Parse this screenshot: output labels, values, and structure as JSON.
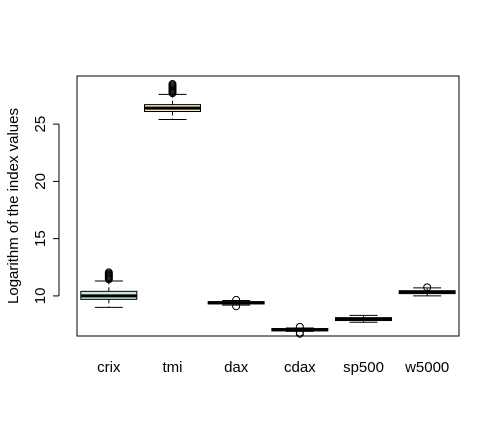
{
  "chart_data": {
    "type": "boxplot",
    "title": "",
    "xlabel": "",
    "ylabel": "Logarithm of the index values",
    "ylim": [
      6.5,
      29.2
    ],
    "y_ticks": [
      10,
      15,
      20,
      25
    ],
    "grid": false,
    "categories": [
      "crix",
      "tmi",
      "dax",
      "cdax",
      "sp500",
      "w5000"
    ],
    "boxes": [
      {
        "name": "crix",
        "fill": "#c7e9e3",
        "whisker_low": 9.0,
        "q1": 9.7,
        "median": 10.0,
        "q3": 10.4,
        "whisker_high": 11.3,
        "outliers_high": [
          11.45,
          11.55,
          11.65,
          11.75,
          11.85,
          11.95,
          12.05
        ]
      },
      {
        "name": "tmi",
        "fill": "#f6e7b3",
        "whisker_low": 25.4,
        "q1": 26.1,
        "median": 26.4,
        "q3": 26.7,
        "whisker_high": 27.6,
        "outliers_high": [
          27.7,
          27.8,
          27.9,
          28.0,
          28.1,
          28.2,
          28.3,
          28.4,
          28.5
        ]
      },
      {
        "name": "dax",
        "fill": "#ffffff",
        "whisker_low": 9.2,
        "q1": 9.3,
        "median": 9.4,
        "q3": 9.5,
        "whisker_high": 9.6,
        "outliers_low": [
          9.1
        ],
        "outliers_high": [
          9.65
        ]
      },
      {
        "name": "cdax",
        "fill": "#ffffff",
        "whisker_low": 6.9,
        "q1": 6.95,
        "median": 7.05,
        "q3": 7.15,
        "whisker_high": 7.2,
        "outliers_low": [
          6.8,
          6.7
        ],
        "outliers_high": [
          7.3
        ]
      },
      {
        "name": "sp500",
        "fill": "#ffffff",
        "whisker_low": 7.7,
        "q1": 7.85,
        "median": 8.0,
        "q3": 8.1,
        "whisker_high": 8.3
      },
      {
        "name": "w5000",
        "fill": "#ffffff",
        "whisker_low": 10.0,
        "q1": 10.2,
        "median": 10.35,
        "q3": 10.45,
        "whisker_high": 10.7,
        "outliers_high": [
          10.75
        ]
      }
    ]
  }
}
